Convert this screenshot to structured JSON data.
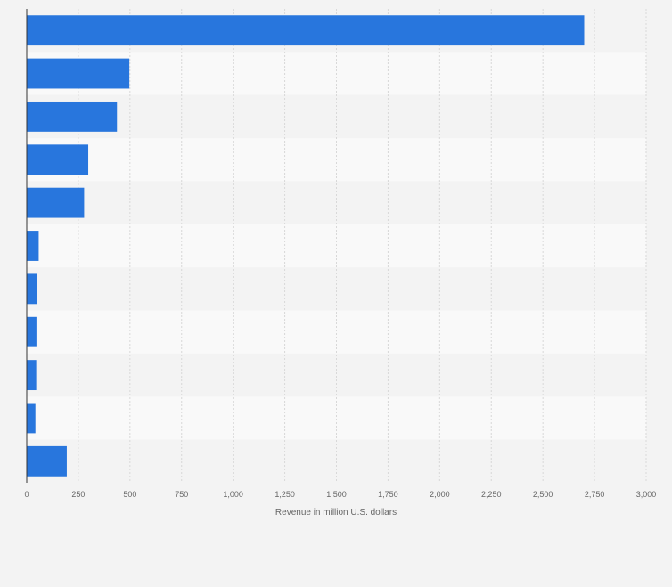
{
  "chart_data": {
    "type": "bar",
    "orientation": "horizontal",
    "categories": [
      "",
      "",
      "",
      "",
      "",
      "",
      "",
      "",
      "",
      "",
      ""
    ],
    "values": [
      2700,
      497,
      437,
      298,
      278,
      58,
      50,
      47,
      46,
      42,
      194
    ],
    "title": "",
    "xlabel": "Revenue in million U.S. dollars",
    "ylabel": "",
    "xlim": [
      0,
      3000
    ],
    "xticks": [
      "0",
      "250",
      "500",
      "750",
      "1,000",
      "1,250",
      "1,500",
      "1,750",
      "2,000",
      "2,250",
      "2,500",
      "2,750",
      "3,000"
    ],
    "tick_values": [
      0,
      250,
      500,
      750,
      1000,
      1250,
      1500,
      1750,
      2000,
      2250,
      2500,
      2750,
      3000
    ],
    "grid": true,
    "bar_color": "#2876dd"
  }
}
